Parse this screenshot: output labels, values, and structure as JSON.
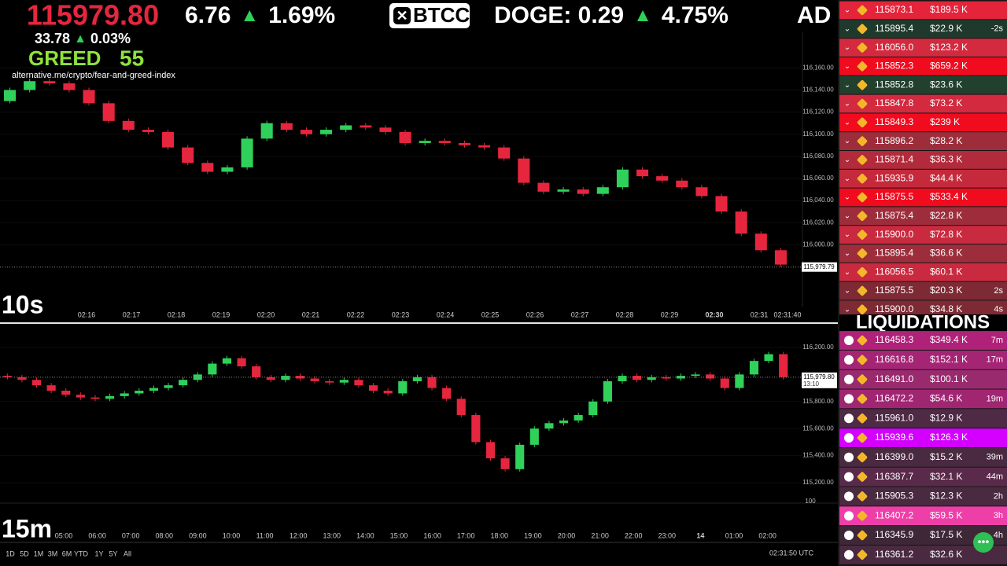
{
  "overlay": {
    "price": "115979.80",
    "change": "33.78",
    "up_arrow": "▲",
    "change_pct": "0.03%",
    "sentiment": "GREED",
    "index": "55",
    "source": "alternative.me/crypto/fear-and-greed-index"
  },
  "ticker": {
    "items": [
      {
        "text": "6.76",
        "change": "1.69%"
      },
      {
        "text": "DOGE: 0.29",
        "change": "4.75%"
      },
      {
        "text": "AD"
      }
    ],
    "logo": "BTCC"
  },
  "charts": [
    {
      "type": "candlestick",
      "interval": "10s",
      "up_color": "#2fd15a",
      "down_color": "#e5263e",
      "open": 116130,
      "closes": [
        116140,
        116148,
        116146,
        116140,
        116128,
        116112,
        116104,
        116102,
        116088,
        116074,
        116066,
        116070,
        116096,
        116110,
        116104,
        116100,
        116104,
        116108,
        116106,
        116102,
        116092,
        116094,
        116092,
        116090,
        116088,
        116078,
        116056,
        116048,
        116050,
        116046,
        116052,
        116068,
        116062,
        116058,
        116052,
        116044,
        116030,
        116010,
        115995,
        115982
      ],
      "ylim": [
        115944,
        116193
      ],
      "yticks": [
        {
          "value": 116160,
          "label": "116,160.00"
        },
        {
          "value": 116140,
          "label": "116,140.00"
        },
        {
          "value": 116120,
          "label": "116,120.00"
        },
        {
          "value": 116100,
          "label": "116,100.00"
        },
        {
          "value": 116080,
          "label": "116,080.00"
        },
        {
          "value": 116060,
          "label": "116,060.00"
        },
        {
          "value": 116040,
          "label": "116,040.00"
        },
        {
          "value": 116020,
          "label": "116,020.00"
        },
        {
          "value": 116000,
          "label": "116,000.00"
        }
      ],
      "last_price": {
        "value": 115979.79,
        "label": "115,979.79"
      },
      "xticks": [
        "02:16",
        "02:17",
        "02:18",
        "02:19",
        "02:20",
        "02:21",
        "02:22",
        "02:23",
        "02:24",
        "02:25",
        "02:26",
        "02:27",
        "02:28",
        "02:29",
        "02:30",
        "02:31",
        "02:31:40"
      ]
    },
    {
      "type": "candlestick",
      "interval": "15m",
      "up_color": "#2fd15a",
      "down_color": "#e5263e",
      "open": 115990,
      "closes": [
        115980,
        115960,
        115920,
        115880,
        115850,
        115830,
        115820,
        115840,
        115860,
        115880,
        115900,
        115920,
        115960,
        116000,
        116080,
        116120,
        116060,
        115980,
        115960,
        115990,
        115970,
        115950,
        115940,
        115960,
        115920,
        115880,
        115860,
        115950,
        115980,
        115900,
        115820,
        115700,
        115500,
        115380,
        115300,
        115480,
        115600,
        115640,
        115660,
        115700,
        115800,
        115950,
        115990,
        115960,
        115980,
        115970,
        115990,
        116000,
        115970,
        115900,
        116000,
        116100,
        116150,
        115980
      ],
      "ylim": [
        115049,
        116374
      ],
      "yticks": [
        {
          "value": 116200,
          "label": "116,200.00"
        },
        {
          "value": 115800,
          "label": "115,800.00"
        },
        {
          "value": 115600,
          "label": "115,600.00"
        },
        {
          "value": 115400,
          "label": "115,400.00"
        },
        {
          "value": 115200,
          "label": "115,200.00"
        }
      ],
      "last_price": {
        "value": 115979.8,
        "label": "115,979.80"
      },
      "countdown": "13:10",
      "volume_tick": "100",
      "xticks": [
        "05:00",
        "06:00",
        "07:00",
        "08:00",
        "09:00",
        "10:00",
        "11:00",
        "12:00",
        "13:00",
        "14:00",
        "15:00",
        "16:00",
        "17:00",
        "18:00",
        "19:00",
        "20:00",
        "21:00",
        "22:00",
        "23:00",
        "14",
        "01:00",
        "02:00"
      ]
    }
  ],
  "toolbar": {
    "ranges": [
      "1D",
      "5D",
      "1M",
      "3M",
      "6M",
      "YTD",
      "1Y",
      "5Y",
      "All"
    ],
    "clock": "02:31:50 UTC"
  },
  "trades": [
    {
      "price": "115873.1",
      "amount": "$189.5 K",
      "color": "#e4243b"
    },
    {
      "price": "115895.4",
      "amount": "$22.9 K",
      "age": "-2s",
      "color": "#1f3a2c"
    },
    {
      "price": "116056.0",
      "amount": "$123.2 K",
      "color": "#d32a3f"
    },
    {
      "price": "115852.3",
      "amount": "$659.2 K",
      "color": "#f00b1e"
    },
    {
      "price": "115852.8",
      "amount": "$23.6 K",
      "color": "#22402e"
    },
    {
      "price": "115847.8",
      "amount": "$73.2 K",
      "color": "#d32a3f"
    },
    {
      "price": "115849.3",
      "amount": "$239 K",
      "color": "#f00b1e"
    },
    {
      "price": "115896.2",
      "amount": "$28.2 K",
      "color": "#9e2d3c"
    },
    {
      "price": "115871.4",
      "amount": "$36.3 K",
      "color": "#b22a3b"
    },
    {
      "price": "115935.9",
      "amount": "$44.4 K",
      "color": "#c42a3c"
    },
    {
      "price": "115875.5",
      "amount": "$533.4 K",
      "color": "#f00b1e"
    },
    {
      "price": "115875.4",
      "amount": "$22.8 K",
      "color": "#9e2d3c"
    },
    {
      "price": "115900.0",
      "amount": "$72.8 K",
      "color": "#c92a3f"
    },
    {
      "price": "115895.4",
      "amount": "$36.6 K",
      "color": "#9e2d3c"
    },
    {
      "price": "116056.5",
      "amount": "$60.1 K",
      "color": "#c92a3f"
    },
    {
      "price": "115875.5",
      "amount": "$20.3 K",
      "age": "2s",
      "color": "#7d2a35"
    },
    {
      "price": "115900.0",
      "amount": "$34.8 K",
      "age": "4s",
      "color": "#7d2a35"
    }
  ],
  "liquidations_title": "LIQUIDATIONS",
  "liquidations": [
    {
      "price": "116458.3",
      "amount": "$349.4 K",
      "age": "7m",
      "color": "#b0227a"
    },
    {
      "price": "116616.8",
      "amount": "$152.1 K",
      "age": "17m",
      "color": "#a52575"
    },
    {
      "price": "116491.0",
      "amount": "$100.1 K",
      "color": "#9a2a6e"
    },
    {
      "price": "116472.2",
      "amount": "$54.6 K",
      "age": "19m",
      "color": "#a02672"
    },
    {
      "price": "115961.0",
      "amount": "$12.9 K",
      "color": "#4e2a44"
    },
    {
      "price": "115939.6",
      "amount": "$126.3 K",
      "color": "#d400ff"
    },
    {
      "price": "116399.0",
      "amount": "$15.2 K",
      "age": "39m",
      "color": "#4a2a40"
    },
    {
      "price": "116387.7",
      "amount": "$32.1 K",
      "age": "44m",
      "color": "#5a2a4a"
    },
    {
      "price": "115905.3",
      "amount": "$12.3 K",
      "age": "2h",
      "color": "#4a2a40"
    },
    {
      "price": "116407.2",
      "amount": "$59.5 K",
      "age": "3h",
      "color": "#ee3fa8"
    },
    {
      "price": "116345.9",
      "amount": "$17.5 K",
      "age": "4h",
      "color": "#3e2838"
    },
    {
      "price": "116361.2",
      "amount": "$32.6 K",
      "color": "#4a2a40"
    }
  ]
}
